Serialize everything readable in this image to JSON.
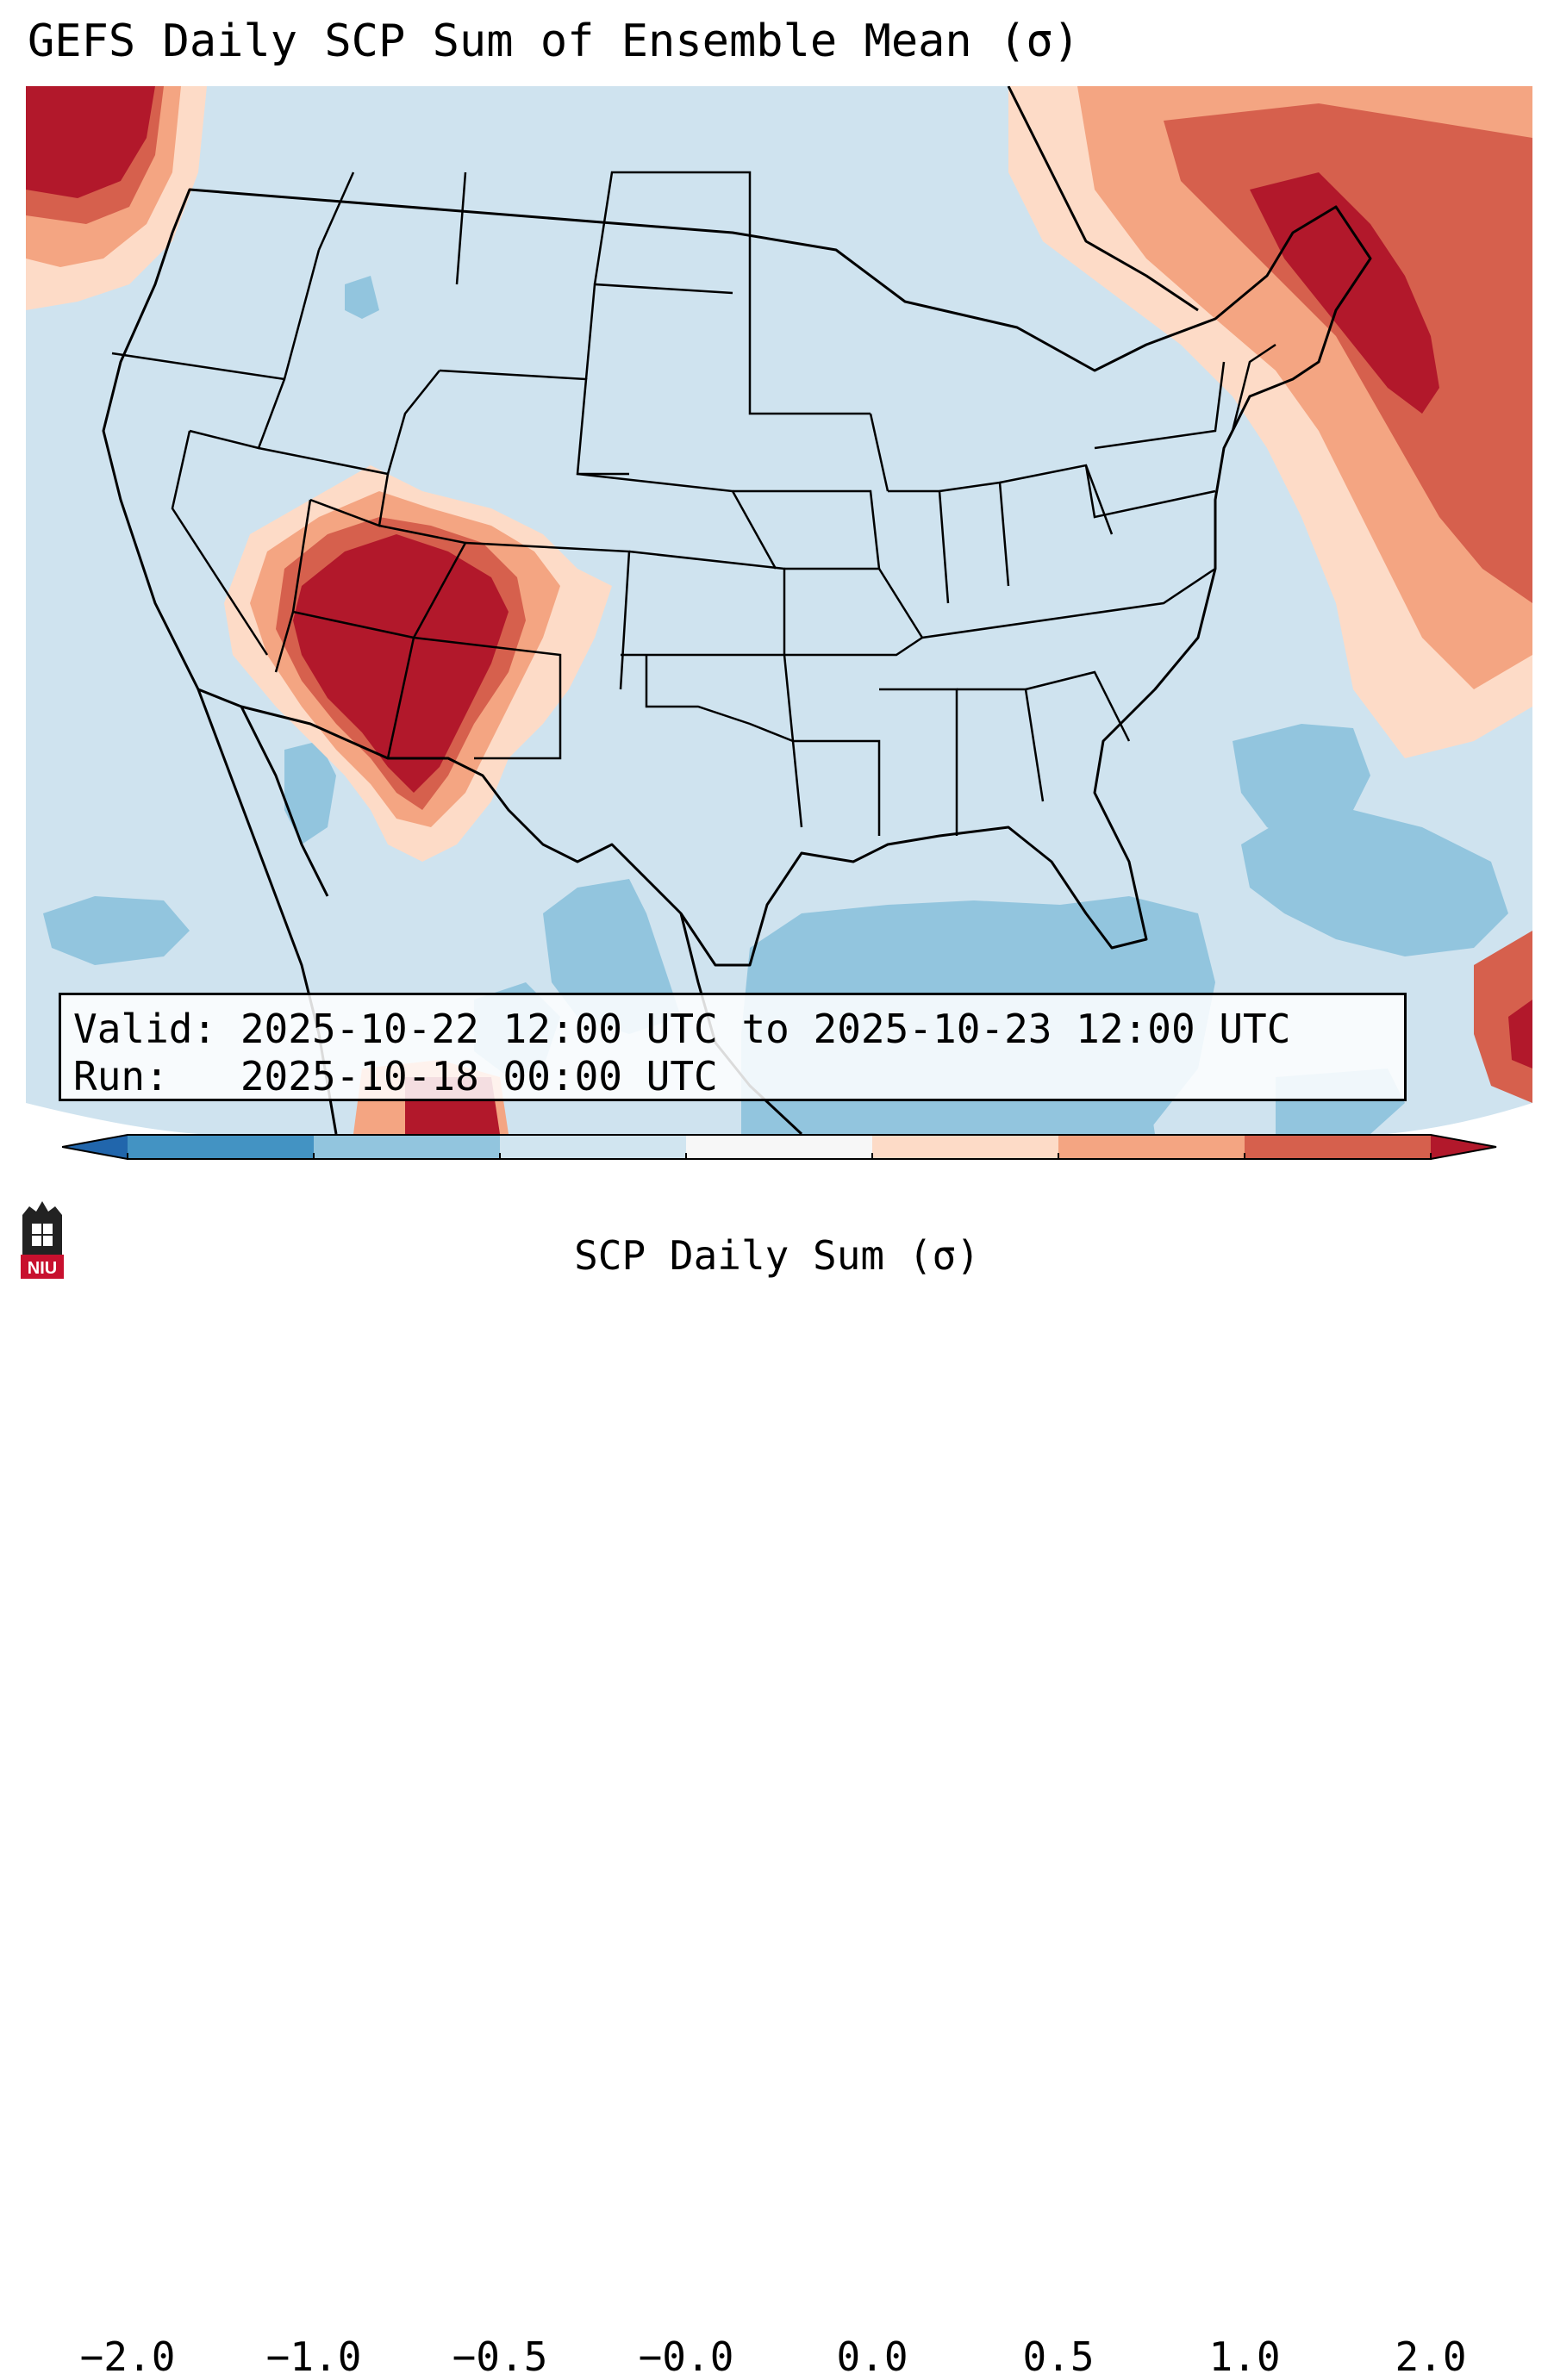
{
  "title": "GEFS Daily SCP Sum of Ensemble Mean (σ)",
  "map": {
    "region": "Contiguous United States",
    "colors": {
      "background_near_zero": "#cfe3ef",
      "neg_05_to_1": "#92c5de",
      "pos_0_to_05": "#fddbc7",
      "pos_05_to_1": "#f4a582",
      "pos_1_to_2": "#d6604d",
      "pos_over_2": "#b2182b",
      "border": "#000000"
    }
  },
  "info_box": {
    "valid_line": "Valid: 2025-10-22 12:00 UTC to 2025-10-23 12:00 UTC",
    "run_line": "Run:   2025-10-18 00:00 UTC"
  },
  "colorbar": {
    "label": "SCP Daily Sum (σ)",
    "ticks": [
      "−2.0",
      "−1.0",
      "−0.5",
      "−0.0",
      "0.0",
      "0.5",
      "1.0",
      "2.0"
    ],
    "segment_colors": [
      "#4393c3",
      "#92c5de",
      "#d1e5f0",
      "#f7f7f7",
      "#fddbc7",
      "#f4a582",
      "#d6604d",
      "#b2182b"
    ],
    "min_color": "#2166ac",
    "max_color": "#b2182b"
  },
  "logo": {
    "text": "NIU",
    "color": "#c8102e"
  }
}
